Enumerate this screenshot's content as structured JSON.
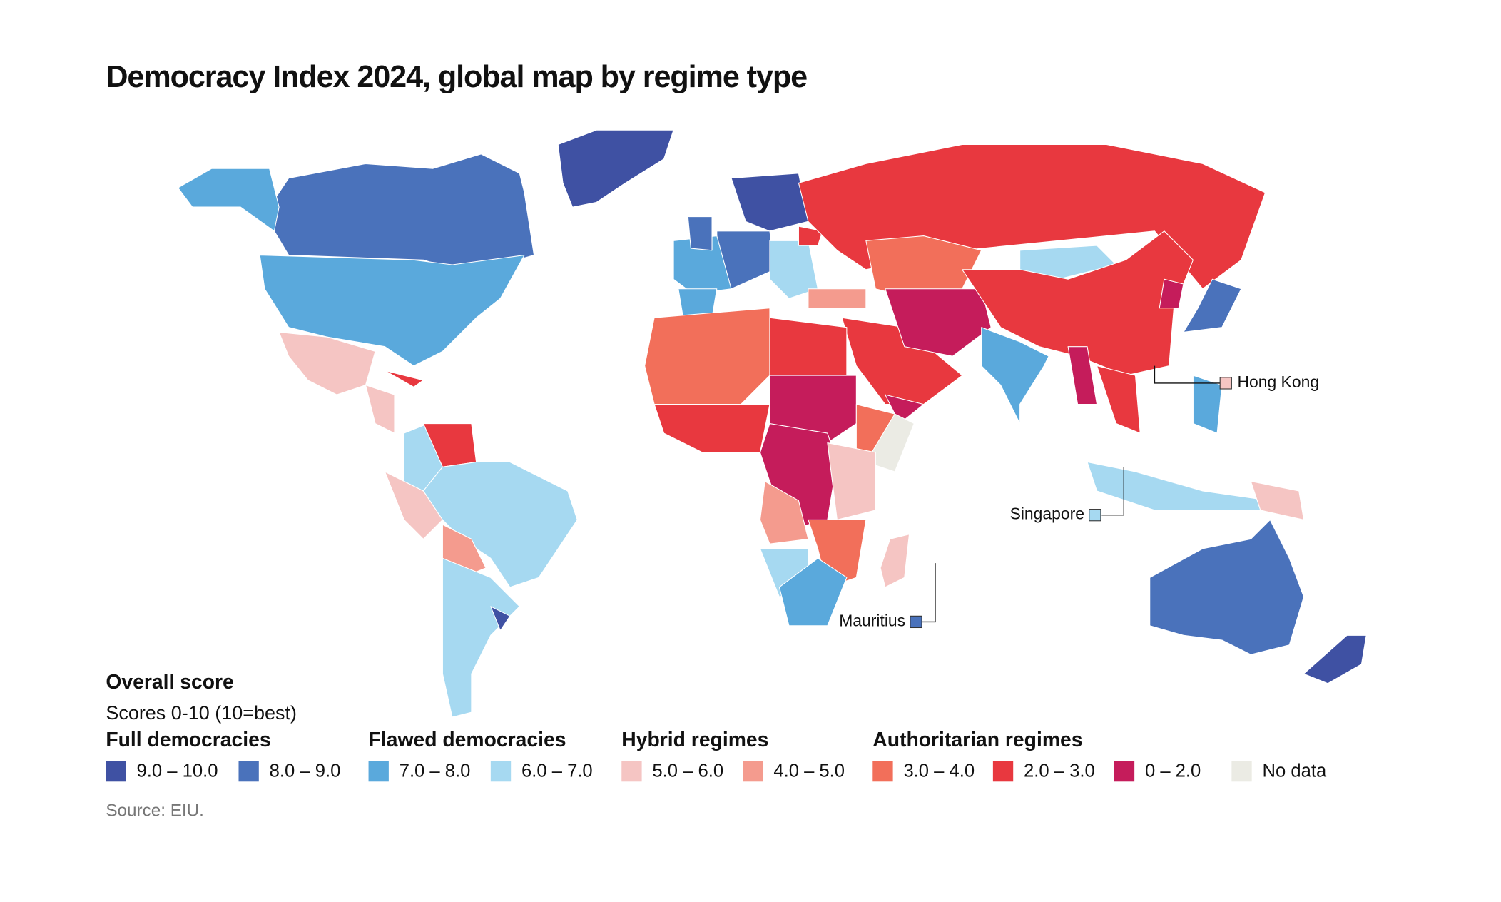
{
  "title": "Democracy Index 2024, global map by regime type",
  "legend": {
    "title": "Overall score",
    "subtitle": "Scores 0-10 (10=best)",
    "groups": [
      {
        "name": "Full democracies",
        "items": [
          {
            "label": "9.0 – 10.0",
            "color": "#3f51a3"
          },
          {
            "label": "8.0 – 9.0",
            "color": "#4a72bb"
          }
        ]
      },
      {
        "name": "Flawed democracies",
        "items": [
          {
            "label": "7.0 – 8.0",
            "color": "#5aa9dc"
          },
          {
            "label": "6.0 – 7.0",
            "color": "#a6d9f1"
          }
        ]
      },
      {
        "name": "Hybrid regimes",
        "items": [
          {
            "label": "5.0 – 6.0",
            "color": "#f5c5c3"
          },
          {
            "label": "4.0 – 5.0",
            "color": "#f49b8e"
          }
        ]
      },
      {
        "name": "Authoritarian regimes",
        "items": [
          {
            "label": "3.0 – 4.0",
            "color": "#f26f5a"
          },
          {
            "label": "2.0 – 3.0",
            "color": "#e8383f"
          },
          {
            "label": "0 – 2.0",
            "color": "#c51c5b"
          }
        ]
      }
    ],
    "no_data": {
      "label": "No data",
      "color": "#ebebe4"
    }
  },
  "annotations": [
    {
      "label": "Hong Kong",
      "color": "#f5c5c3"
    },
    {
      "label": "Singapore",
      "color": "#a6d9f1"
    },
    {
      "label": "Mauritius",
      "color": "#4a72bb"
    }
  ],
  "source": "Source: EIU."
}
